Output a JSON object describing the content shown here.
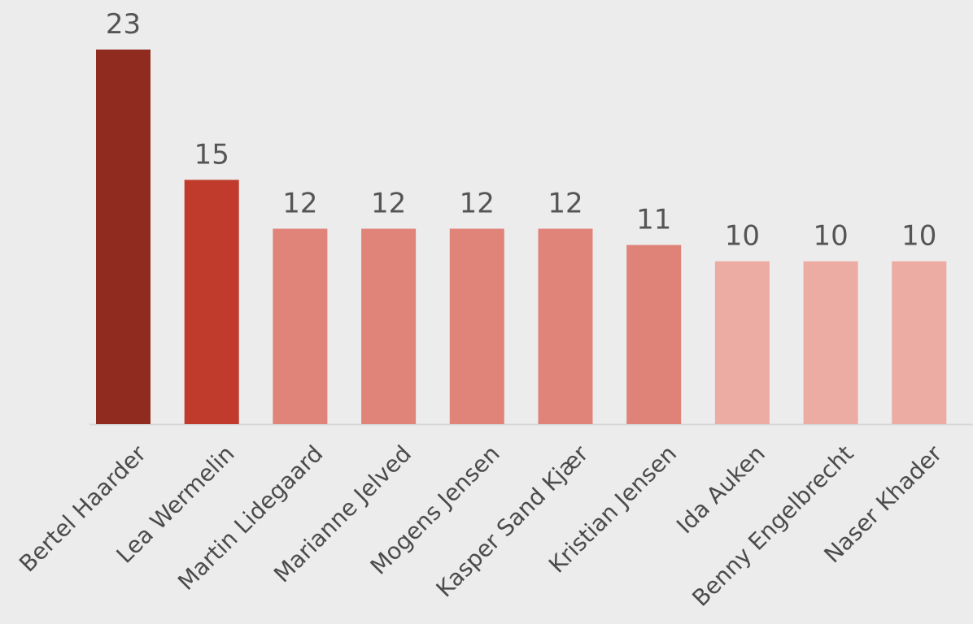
{
  "chart_data": {
    "type": "bar",
    "categories": [
      "Bertel Haarder",
      "Lea Wermelin",
      "Martin Lidegaard",
      "Marianne Jelved",
      "Mogens Jensen",
      "Kasper Sand Kjær",
      "Kristian Jensen",
      "Ida Auken",
      "Benny Engelbrecht",
      "Naser Khader"
    ],
    "values": [
      23,
      15,
      12,
      12,
      12,
      12,
      11,
      10,
      10,
      10
    ],
    "colors": [
      "#8f2b1f",
      "#c13b2c",
      "#e0847a",
      "#e0847a",
      "#e0847a",
      "#e0847a",
      "#df8378",
      "#ecaba3",
      "#ecaba3",
      "#ecaba3"
    ],
    "baseline_color": "#d7d7d7",
    "title": "",
    "xlabel": "",
    "ylabel": "",
    "ylim": [
      0,
      23
    ],
    "grid": false,
    "legend": "none"
  }
}
